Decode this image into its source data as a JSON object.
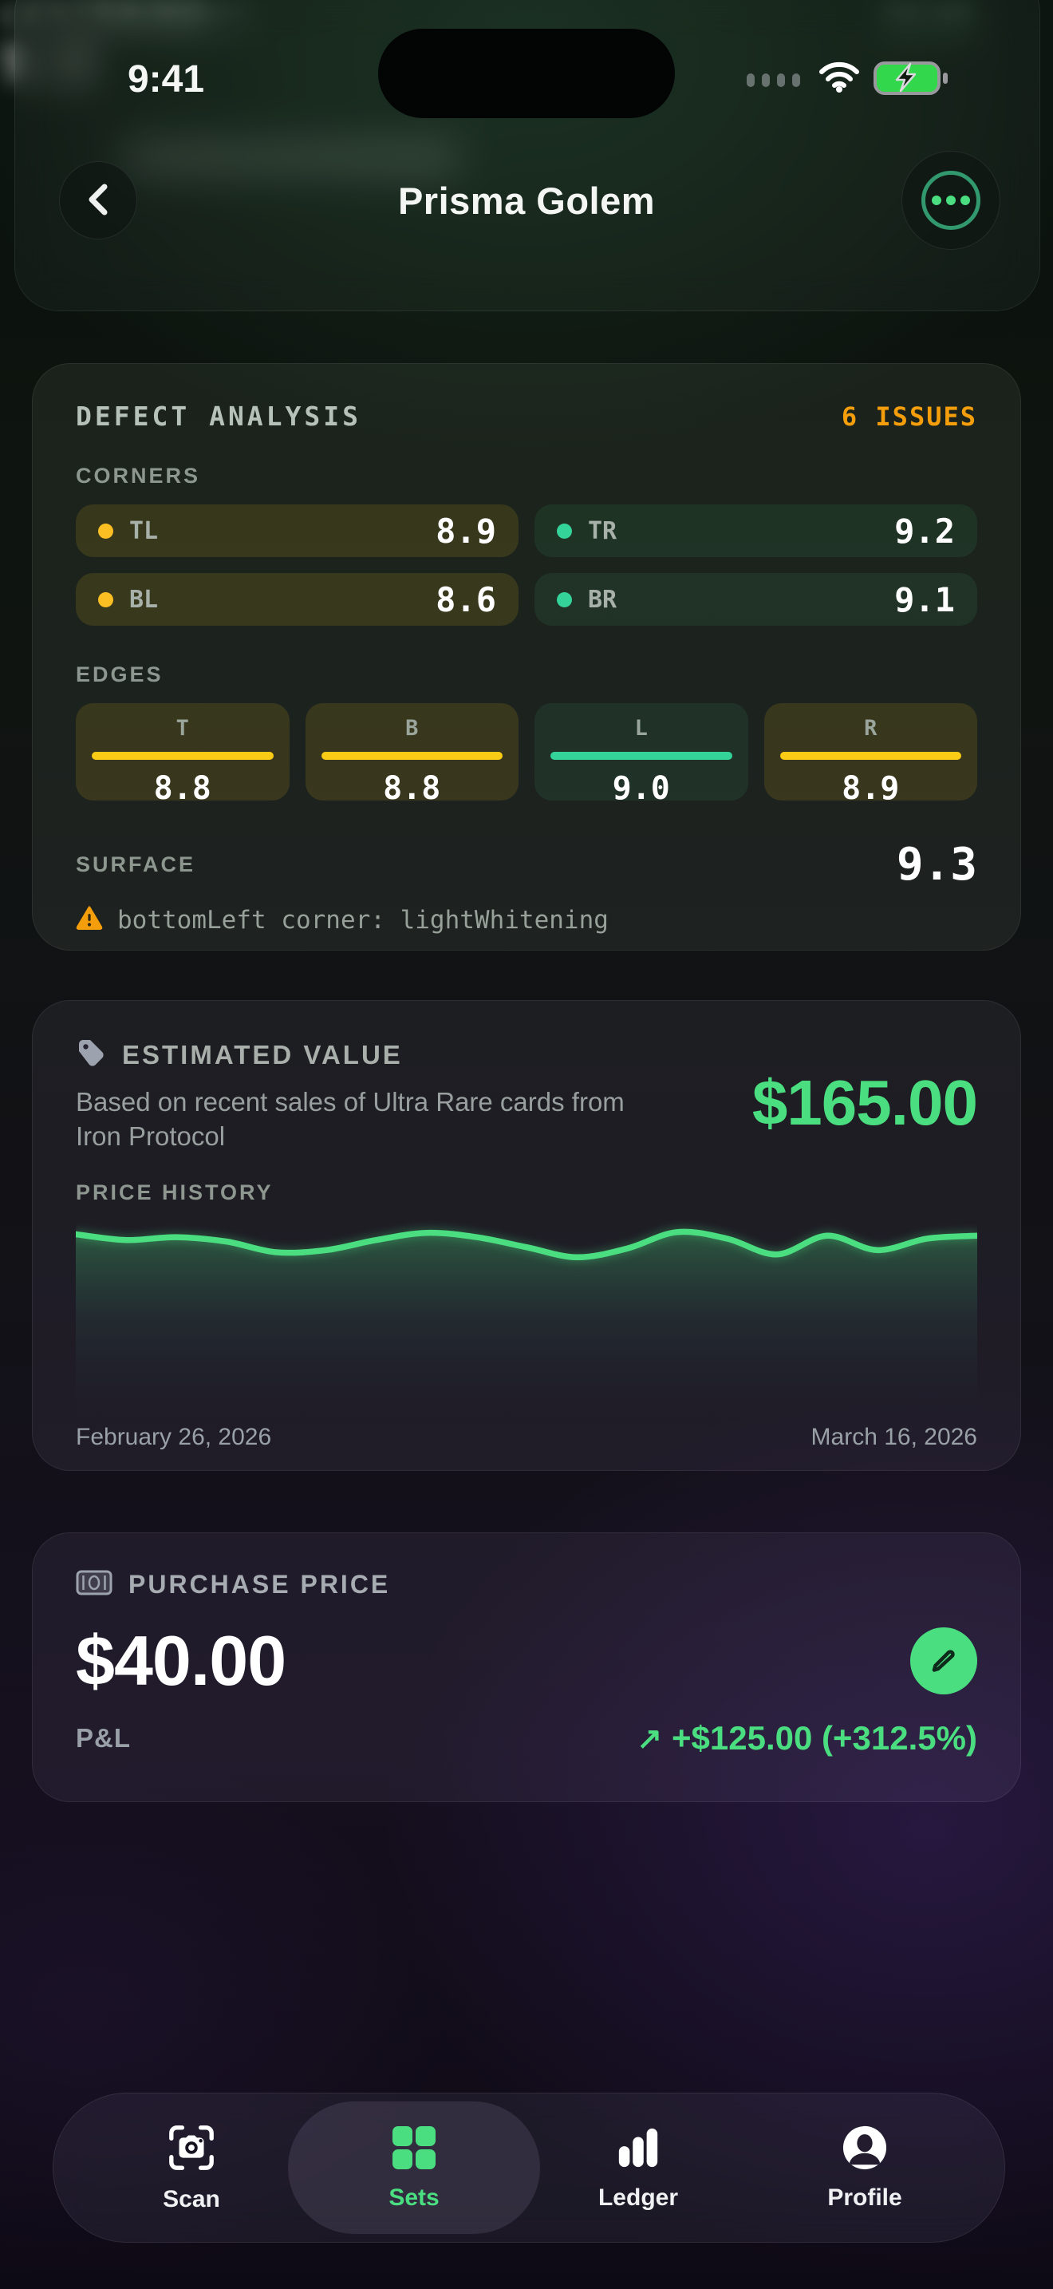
{
  "status_bar": {
    "time": "9:41"
  },
  "blur_underlay": {
    "top_left": "Top / Bottom",
    "top_right": "52/48",
    "section_label": "CENTERING",
    "score": "9.5"
  },
  "header": {
    "title": "Prisma Golem"
  },
  "defect_card": {
    "title": "DEFECT ANALYSIS",
    "issues_badge": "6 ISSUES",
    "corners_label": "CORNERS",
    "corners": [
      {
        "label": "TL",
        "value": "8.9",
        "status": "warn"
      },
      {
        "label": "TR",
        "value": "9.2",
        "status": "good"
      },
      {
        "label": "BL",
        "value": "8.6",
        "status": "warn"
      },
      {
        "label": "BR",
        "value": "9.1",
        "status": "good"
      }
    ],
    "edges_label": "EDGES",
    "edges": [
      {
        "label": "T",
        "value": "8.8",
        "status": "warn"
      },
      {
        "label": "B",
        "value": "8.8",
        "status": "warn"
      },
      {
        "label": "L",
        "value": "9.0",
        "status": "good"
      },
      {
        "label": "R",
        "value": "8.9",
        "status": "warn"
      }
    ],
    "surface_label": "SURFACE",
    "surface_value": "9.3",
    "warning": "bottomLeft corner: lightWhitening"
  },
  "value_card": {
    "title": "ESTIMATED VALUE",
    "subtitle": "Based on recent sales of Ultra Rare cards from Iron Protocol",
    "amount": "$165.00",
    "history_label": "PRICE HISTORY",
    "date_start": "February 26, 2026",
    "date_end": "March 16, 2026"
  },
  "chart_data": {
    "type": "area",
    "title": "PRICE HISTORY",
    "x_start": "February 26, 2026",
    "x_end": "March 16, 2026",
    "values": [
      164.0,
      163.2,
      163.6,
      163.0,
      161.5,
      161.8,
      163.2,
      164.2,
      163.6,
      162.2,
      160.8,
      162.0,
      164.3,
      163.4,
      161.2,
      163.8,
      161.8,
      163.4,
      163.8
    ],
    "current_value": 165.0,
    "line_color": "#4ade80",
    "legend": "none",
    "grid": false
  },
  "purchase_card": {
    "title": "PURCHASE PRICE",
    "amount": "$40.00",
    "pl_label": "P&L",
    "pl_arrow": "↗",
    "pl_value": "+$125.00 (+312.5%)"
  },
  "tab_bar": {
    "items": [
      {
        "label": "Scan",
        "active": false
      },
      {
        "label": "Sets",
        "active": true
      },
      {
        "label": "Ledger",
        "active": false
      },
      {
        "label": "Profile",
        "active": false
      }
    ]
  },
  "colors": {
    "accent_green": "#4ade80",
    "good_green": "#34d399",
    "warn_yellow": "#facc15",
    "issues_orange": "#f59e0b"
  }
}
